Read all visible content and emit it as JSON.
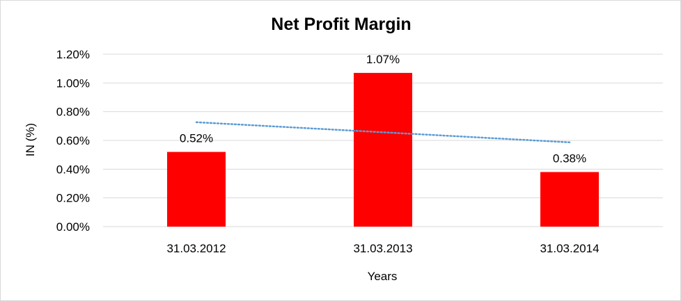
{
  "chart_data": {
    "type": "bar",
    "title": "Net Profit Margin",
    "xlabel": "Years",
    "ylabel": "IN (%)",
    "categories": [
      "31.03.2012",
      "31.03.2013",
      "31.03.2014"
    ],
    "values": [
      0.52,
      1.07,
      0.38
    ],
    "data_labels": [
      "0.52%",
      "1.07%",
      "0.38%"
    ],
    "ylim": [
      0,
      1.2
    ],
    "yticks": [
      0,
      0.2,
      0.4,
      0.6,
      0.8,
      1.0,
      1.2
    ],
    "ytick_labels": [
      "0.00%",
      "0.20%",
      "0.40%",
      "0.60%",
      "0.80%",
      "1.00%",
      "1.20%"
    ],
    "trendline": {
      "type": "linear",
      "style": "dotted",
      "color": "#5b9bd5"
    },
    "bar_color": "#ff0000",
    "grid": true,
    "gridline_color": "#d9d9d9",
    "legend": "none"
  }
}
